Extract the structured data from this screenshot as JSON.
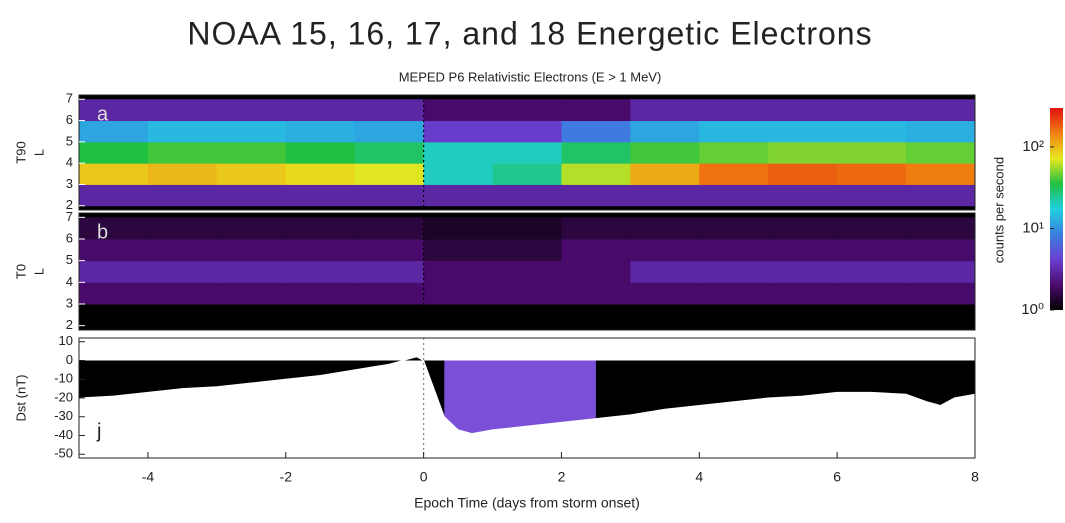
{
  "chart_data": [
    {
      "type": "heatmap",
      "title": "NOAA 15, 16, 17, and 18 Energetic Electrons",
      "subtitle": "MEPED P6 Relativistic Electrons (E > 1 MeV)",
      "panel_label": "a",
      "ylabel": [
        "T90",
        "L"
      ],
      "x_bins": [
        -5,
        -4,
        -3,
        -2,
        -1,
        0,
        1,
        2,
        3,
        4,
        5,
        6,
        7,
        8
      ],
      "y_bins": [
        2,
        3,
        4,
        5,
        6,
        7
      ],
      "values": [
        [
          3,
          3,
          3,
          3,
          3,
          3,
          3,
          3,
          3,
          3,
          3,
          3,
          3
        ],
        [
          90,
          100,
          90,
          80,
          70,
          20,
          25,
          60,
          110,
          160,
          180,
          170,
          150
        ],
        [
          35,
          40,
          40,
          35,
          30,
          20,
          20,
          30,
          40,
          45,
          50,
          50,
          45
        ],
        [
          12,
          14,
          14,
          13,
          12,
          4,
          4,
          8,
          12,
          14,
          14,
          14,
          13
        ],
        [
          3,
          3,
          3,
          3,
          3,
          2,
          2,
          2,
          3,
          3,
          3,
          3,
          3
        ]
      ],
      "xlim": [
        -5,
        8
      ],
      "ylim": [
        1.8,
        7.2
      ],
      "yticks": [
        2,
        3,
        4,
        5,
        6,
        7
      ],
      "colorbar": {
        "label": "counts per second",
        "log": true,
        "lim": [
          1,
          300
        ],
        "ticks": [
          {
            "value": 1,
            "label": "10⁰"
          },
          {
            "value": 10,
            "label": "10¹"
          },
          {
            "value": 100,
            "label": "10²"
          }
        ],
        "colors": [
          "#000000",
          "#4b0b6e",
          "#6a3fd0",
          "#3a7fe0",
          "#20d0e0",
          "#20c040",
          "#e8e820",
          "#f08010",
          "#e01010"
        ]
      }
    },
    {
      "type": "heatmap",
      "panel_label": "b",
      "ylabel": [
        "T0",
        "L"
      ],
      "x_bins": [
        -5,
        -4,
        -3,
        -2,
        -1,
        0,
        1,
        2,
        3,
        4,
        5,
        6,
        7,
        8
      ],
      "y_bins": [
        2,
        3,
        4,
        5,
        6,
        7
      ],
      "values": [
        [
          1,
          1,
          1,
          1,
          1,
          1,
          1,
          1,
          1,
          1,
          1,
          1,
          1
        ],
        [
          2,
          2,
          2,
          2,
          2,
          2,
          2,
          2,
          2,
          2,
          2,
          2,
          2
        ],
        [
          3,
          3,
          3,
          3,
          3,
          2,
          2,
          2,
          3,
          3,
          3,
          3,
          3
        ],
        [
          2,
          2,
          2,
          2,
          2,
          1.5,
          1.5,
          2,
          2,
          2,
          2,
          2,
          2
        ],
        [
          1.5,
          1.5,
          1.5,
          1.5,
          1.5,
          1.3,
          1.3,
          1.5,
          1.5,
          1.5,
          1.5,
          1.5,
          1.5
        ]
      ],
      "xlim": [
        -5,
        8
      ],
      "ylim": [
        1.8,
        7.2
      ],
      "yticks": [
        2,
        3,
        4,
        5,
        6,
        7
      ]
    },
    {
      "type": "line",
      "panel_label": "j",
      "ylabel": [
        "Dst (nT)"
      ],
      "xlabel": "Epoch Time (days from storm onset)",
      "x": [
        -5,
        -4.5,
        -4,
        -3.5,
        -3,
        -2.5,
        -2,
        -1.5,
        -1,
        -0.5,
        -0.1,
        0,
        0.1,
        0.3,
        0.5,
        0.7,
        1,
        1.5,
        2,
        2.5,
        3,
        3.5,
        4,
        4.5,
        5,
        5.5,
        6,
        6.5,
        7,
        7.3,
        7.5,
        7.7,
        8
      ],
      "values": [
        -20,
        -19,
        -17,
        -15,
        -14,
        -12,
        -10,
        -8,
        -5,
        -2,
        2,
        0,
        -10,
        -30,
        -37,
        -39,
        -37,
        -35,
        -33,
        -31,
        -29,
        -26,
        -24,
        -22,
        -20,
        -19,
        -17,
        -17,
        -18,
        -22,
        -24,
        -20,
        -18
      ],
      "fill_color": "#000000",
      "highlight": {
        "xlim": [
          0.15,
          2.7
        ],
        "color": "#7b4fd8"
      },
      "xlim": [
        -5,
        8
      ],
      "ylim": [
        -52,
        12
      ],
      "xticks": [
        -4,
        -2,
        0,
        2,
        4,
        6,
        8
      ],
      "yticks": [
        -50,
        -40,
        -30,
        -20,
        -10,
        0,
        10
      ]
    }
  ]
}
